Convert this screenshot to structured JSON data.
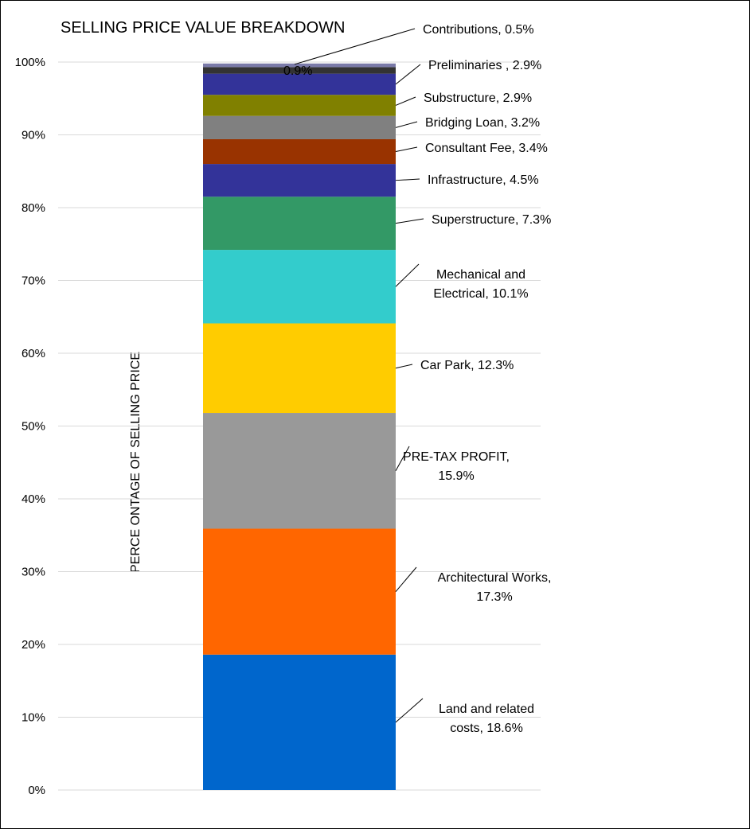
{
  "chart_data": {
    "type": "bar",
    "stacked": true,
    "title": "SELLING PRICE VALUE  BREAKDOWN",
    "ylabel": "PERCE ONTAGE OF SELLING PRICE",
    "xlabel": "",
    "ylim": [
      0,
      100
    ],
    "yticks": [
      "0%",
      "10%",
      "20%",
      "30%",
      "40%",
      "50%",
      "60%",
      "70%",
      "80%",
      "90%",
      "100%"
    ],
    "grid": true,
    "legend": "none",
    "series": [
      {
        "name": "Land and related costs",
        "value": 18.6,
        "label": [
          "Land and related",
          "costs, 18.6%"
        ],
        "color": "#0066CC"
      },
      {
        "name": "Architectural Works",
        "value": 17.3,
        "label": [
          "Architectural Works,",
          "17.3%"
        ],
        "color": "#FF6600"
      },
      {
        "name": "PRE-TAX PROFIT",
        "value": 15.9,
        "label": [
          "PRE-TAX PROFIT,",
          "15.9%"
        ],
        "color": "#999999"
      },
      {
        "name": "Car Park",
        "value": 12.3,
        "label": [
          "Car Park, 12.3%"
        ],
        "color": "#FFCC00"
      },
      {
        "name": "Mechanical and Electrical",
        "value": 10.1,
        "label": [
          "Mechanical and",
          "Electrical, 10.1%"
        ],
        "color": "#33CCCC"
      },
      {
        "name": "Superstructure",
        "value": 7.3,
        "label": [
          "Superstructure, 7.3%"
        ],
        "color": "#339966"
      },
      {
        "name": "Infrastructure",
        "value": 4.5,
        "label": [
          "Infrastructure, 4.5%"
        ],
        "color": "#333399"
      },
      {
        "name": "Consultant Fee",
        "value": 3.4,
        "label": [
          "Consultant Fee, 3.4%"
        ],
        "color": "#993300"
      },
      {
        "name": "Bridging Loan",
        "value": 3.2,
        "label": [
          "Bridging Loan, 3.2%"
        ],
        "color": "#808080"
      },
      {
        "name": "Substructure",
        "value": 2.9,
        "label": [
          "Substructure, 2.9%"
        ],
        "color": "#808000"
      },
      {
        "name": "Preliminaries",
        "value": 2.9,
        "label": [
          "Preliminaries , 2.9%"
        ],
        "color": "#333399"
      },
      {
        "name": "",
        "value": 0.9,
        "label": [
          "0.9%"
        ],
        "color": "#333333"
      },
      {
        "name": "Contributions",
        "value": 0.5,
        "label": [
          "Contributions, 0.5%"
        ],
        "color": "#7a7aa8"
      }
    ]
  }
}
